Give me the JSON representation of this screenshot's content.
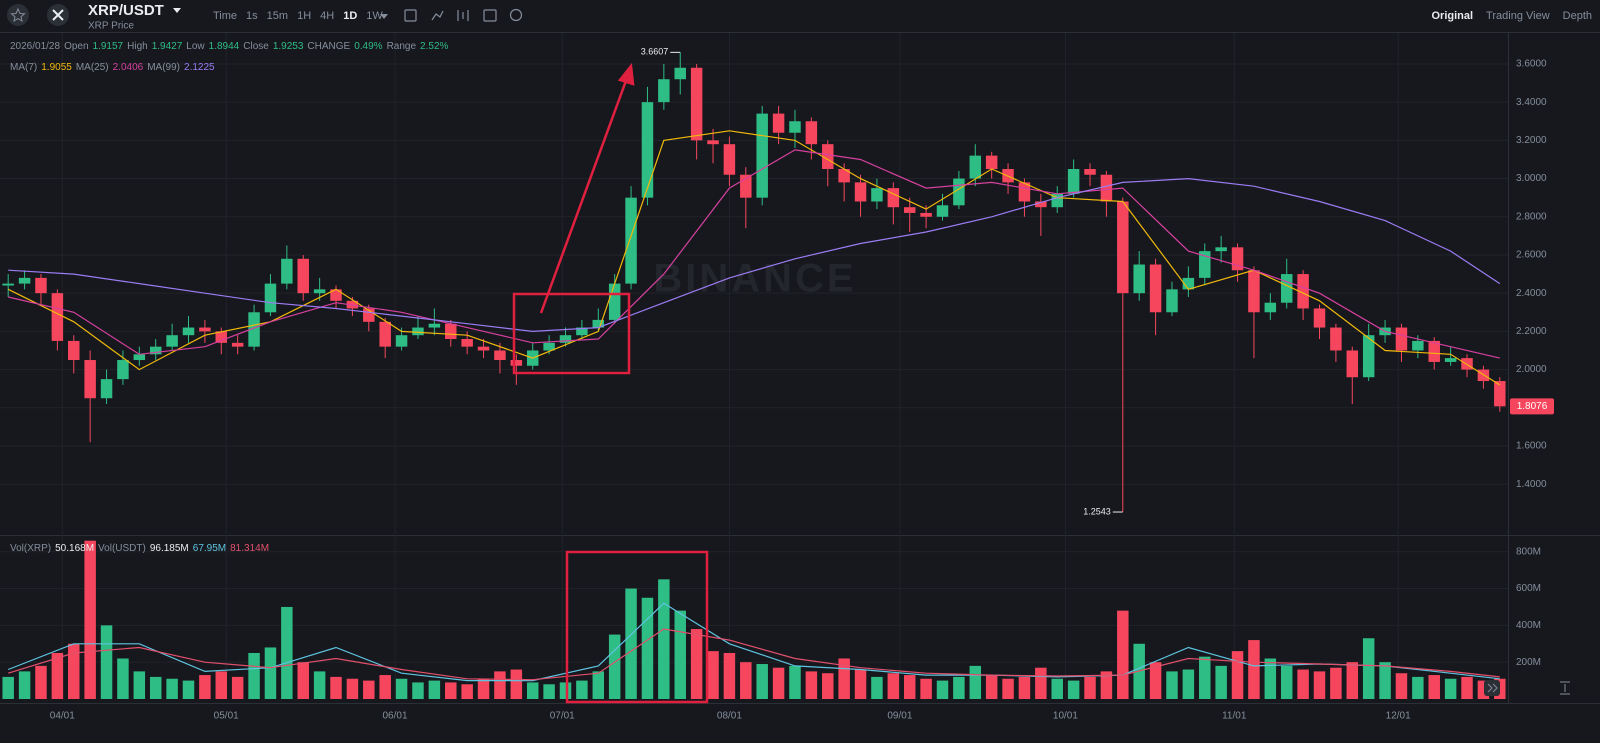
{
  "toolbar": {
    "symbol": "XRP/USDT",
    "subtitle": "XRP Price",
    "intervals": [
      "Time",
      "1s",
      "15m",
      "1H",
      "4H",
      "1D",
      "1W"
    ],
    "active_interval": 5,
    "views": [
      "Original",
      "Trading View",
      "Depth"
    ],
    "active_view": 0
  },
  "info": {
    "date": "2026/01/28",
    "items": [
      {
        "label": "Open",
        "value": 1.9157
      },
      {
        "label": "High",
        "value": 1.9427
      },
      {
        "label": "Low",
        "value": 1.8944
      },
      {
        "label": "Close",
        "value": 1.9253
      },
      {
        "label": "CHANGE",
        "value": "0.49%"
      },
      {
        "label": "Range",
        "value": "2.52%"
      }
    ]
  },
  "volume_info": [
    {
      "label": "Vol(XRP)",
      "value": "50.168M"
    },
    {
      "label": "Vol(USDT)",
      "value": "96.185M"
    }
  ],
  "chart_data": {
    "type": "candlestick",
    "watermark": "BINANCE",
    "up_color": "#2ebd85",
    "down_color": "#f6465d",
    "xlim": [
      -0.5,
      91.5
    ],
    "xticks": [
      {
        "value": 3.3,
        "label": "04/01"
      },
      {
        "value": 13.3,
        "label": "05/01"
      },
      {
        "value": 23.6,
        "label": "06/01"
      },
      {
        "value": 33.8,
        "label": "07/01"
      },
      {
        "value": 44.0,
        "label": "08/01"
      },
      {
        "value": 54.4,
        "label": "09/01"
      },
      {
        "value": 64.5,
        "label": "10/01"
      },
      {
        "value": 74.8,
        "label": "11/01"
      },
      {
        "value": 84.8,
        "label": "12/01"
      }
    ],
    "ylim": [
      1.134,
      3.762
    ],
    "yticks": [
      {
        "value": 1.4,
        "label": "1.4000"
      },
      {
        "value": 1.6,
        "label": "1.6000"
      },
      {
        "value": 1.8,
        "label": "1.8000"
      },
      {
        "value": 2.0,
        "label": "2.0000"
      },
      {
        "value": 2.2,
        "label": "2.2000"
      },
      {
        "value": 2.4,
        "label": "2.4000"
      },
      {
        "value": 2.6,
        "label": "2.6000"
      },
      {
        "value": 2.8,
        "label": "2.8000"
      },
      {
        "value": 3.0,
        "label": "3.0000"
      },
      {
        "value": 3.2,
        "label": "3.2000"
      },
      {
        "value": 3.4,
        "label": "3.4000"
      },
      {
        "value": 3.6,
        "label": "3.6000"
      }
    ],
    "candles": {
      "open": [
        2.44,
        2.45,
        2.48,
        2.4,
        2.15,
        2.05,
        1.85,
        1.95,
        2.05,
        2.08,
        2.12,
        2.18,
        2.22,
        2.2,
        2.14,
        2.12,
        2.3,
        2.45,
        2.58,
        2.4,
        2.42,
        2.36,
        2.32,
        2.25,
        2.12,
        2.18,
        2.22,
        2.24,
        2.16,
        2.12,
        2.1,
        2.05,
        2.02,
        2.1,
        2.14,
        2.18,
        2.22,
        2.26,
        2.45,
        2.9,
        3.4,
        3.52,
        3.58,
        3.2,
        3.18,
        3.02,
        2.9,
        3.34,
        3.24,
        3.3,
        3.18,
        3.05,
        2.98,
        2.88,
        2.95,
        2.85,
        2.82,
        2.8,
        2.86,
        3.0,
        3.12,
        3.05,
        2.98,
        2.88,
        2.85,
        2.92,
        3.05,
        3.02,
        2.88,
        2.4,
        2.55,
        2.3,
        2.42,
        2.48,
        2.62,
        2.64,
        2.52,
        2.3,
        2.35,
        2.5,
        2.32,
        2.22,
        2.1,
        1.96,
        2.18,
        2.22,
        2.1,
        2.15,
        2.04,
        2.06,
        2.0,
        1.94
      ],
      "high": [
        2.5,
        2.52,
        2.5,
        2.42,
        2.18,
        2.1,
        2.0,
        2.1,
        2.12,
        2.16,
        2.24,
        2.28,
        2.26,
        2.22,
        2.18,
        2.34,
        2.5,
        2.65,
        2.6,
        2.48,
        2.44,
        2.38,
        2.34,
        2.27,
        2.22,
        2.28,
        2.32,
        2.26,
        2.2,
        2.16,
        2.14,
        2.08,
        2.14,
        2.18,
        2.22,
        2.26,
        2.32,
        2.5,
        2.96,
        3.48,
        3.6,
        3.6607,
        3.6,
        3.26,
        3.22,
        3.06,
        3.38,
        3.38,
        3.36,
        3.32,
        3.2,
        3.08,
        3.02,
        3.0,
        2.98,
        2.9,
        2.86,
        2.92,
        3.04,
        3.18,
        3.14,
        3.08,
        3.0,
        2.92,
        2.96,
        3.1,
        3.08,
        3.04,
        2.9,
        2.62,
        2.58,
        2.46,
        2.54,
        2.66,
        2.7,
        2.66,
        2.54,
        2.4,
        2.58,
        2.52,
        2.34,
        2.24,
        2.12,
        2.24,
        2.26,
        2.24,
        2.18,
        2.17,
        2.12,
        2.08,
        2.02,
        1.96
      ],
      "low": [
        2.38,
        2.42,
        2.34,
        2.1,
        1.98,
        1.62,
        1.82,
        1.92,
        2.02,
        2.05,
        2.1,
        2.14,
        2.14,
        2.08,
        2.08,
        2.1,
        2.28,
        2.42,
        2.36,
        2.36,
        2.32,
        2.28,
        2.2,
        2.06,
        2.1,
        2.16,
        2.18,
        2.12,
        2.08,
        2.06,
        1.98,
        1.92,
        2.0,
        2.08,
        2.12,
        2.16,
        2.2,
        2.24,
        2.42,
        2.86,
        3.36,
        3.44,
        3.1,
        3.08,
        2.96,
        2.74,
        2.86,
        3.18,
        3.16,
        3.1,
        2.96,
        2.88,
        2.8,
        2.84,
        2.76,
        2.72,
        2.74,
        2.78,
        2.84,
        2.96,
        3.0,
        2.92,
        2.8,
        2.7,
        2.82,
        2.9,
        2.96,
        2.8,
        1.2543,
        2.36,
        2.18,
        2.28,
        2.38,
        2.44,
        2.56,
        2.46,
        2.06,
        2.26,
        2.32,
        2.26,
        2.16,
        2.04,
        1.82,
        1.94,
        2.14,
        2.04,
        2.06,
        2.0,
        2.02,
        1.96,
        1.9,
        1.78
      ],
      "close": [
        2.45,
        2.48,
        2.4,
        2.15,
        2.05,
        1.85,
        1.95,
        2.05,
        2.08,
        2.12,
        2.18,
        2.22,
        2.2,
        2.14,
        2.12,
        2.3,
        2.45,
        2.58,
        2.4,
        2.42,
        2.36,
        2.32,
        2.25,
        2.12,
        2.18,
        2.22,
        2.24,
        2.16,
        2.12,
        2.1,
        2.05,
        2.02,
        2.1,
        2.14,
        2.18,
        2.22,
        2.26,
        2.45,
        2.9,
        3.4,
        3.52,
        3.58,
        3.2,
        3.18,
        3.02,
        2.9,
        3.34,
        3.24,
        3.3,
        3.18,
        3.05,
        2.98,
        2.88,
        2.95,
        2.85,
        2.82,
        2.8,
        2.86,
        3.0,
        3.12,
        3.05,
        2.98,
        2.88,
        2.85,
        2.92,
        3.05,
        3.02,
        2.88,
        2.4,
        2.55,
        2.3,
        2.42,
        2.48,
        2.62,
        2.64,
        2.52,
        2.3,
        2.35,
        2.5,
        2.32,
        2.22,
        2.1,
        1.96,
        2.18,
        2.22,
        2.1,
        2.15,
        2.04,
        2.06,
        2.0,
        1.94,
        1.8076
      ]
    },
    "ma": [
      {
        "name": "MA(7)",
        "current": 1.9055,
        "color": "#f0b90b",
        "x": [
          0,
          4,
          8,
          12,
          16,
          20,
          24,
          28,
          32,
          36,
          40,
          44,
          48,
          52,
          56,
          60,
          64,
          68,
          72,
          76,
          80,
          84,
          88,
          91
        ],
        "values": [
          2.42,
          2.25,
          2.0,
          2.18,
          2.25,
          2.42,
          2.2,
          2.18,
          2.06,
          2.2,
          3.2,
          3.25,
          3.2,
          3.0,
          2.84,
          3.05,
          2.9,
          2.88,
          2.42,
          2.52,
          2.36,
          2.1,
          2.08,
          1.92
        ]
      },
      {
        "name": "MA(25)",
        "current": 2.0406,
        "color": "#d6409f",
        "x": [
          0,
          4,
          8,
          12,
          16,
          20,
          24,
          28,
          32,
          36,
          40,
          44,
          48,
          52,
          56,
          60,
          64,
          68,
          72,
          76,
          80,
          84,
          88,
          91
        ],
        "values": [
          2.38,
          2.3,
          2.08,
          2.12,
          2.25,
          2.35,
          2.3,
          2.22,
          2.14,
          2.16,
          2.5,
          2.95,
          3.15,
          3.1,
          2.95,
          2.98,
          2.92,
          2.95,
          2.62,
          2.52,
          2.4,
          2.2,
          2.12,
          2.06
        ]
      },
      {
        "name": "MA(99)",
        "current": 2.1225,
        "color": "#9c7cf4",
        "x": [
          0,
          4,
          8,
          12,
          16,
          20,
          24,
          28,
          32,
          36,
          40,
          44,
          48,
          52,
          56,
          60,
          64,
          68,
          72,
          76,
          80,
          84,
          88,
          91
        ],
        "values": [
          2.52,
          2.5,
          2.45,
          2.4,
          2.35,
          2.32,
          2.28,
          2.24,
          2.2,
          2.22,
          2.35,
          2.48,
          2.58,
          2.66,
          2.72,
          2.8,
          2.9,
          2.98,
          3.0,
          2.96,
          2.88,
          2.78,
          2.62,
          2.45
        ]
      }
    ],
    "volume": {
      "ylim": [
        0,
        880
      ],
      "yticks": [
        {
          "value": 200,
          "label": "200M"
        },
        {
          "value": 400,
          "label": "400M"
        },
        {
          "value": 600,
          "label": "600M"
        },
        {
          "value": 800,
          "label": "800M"
        }
      ],
      "values": [
        120,
        150,
        180,
        250,
        300,
        860,
        400,
        220,
        150,
        120,
        110,
        100,
        130,
        150,
        120,
        250,
        280,
        500,
        200,
        150,
        120,
        110,
        100,
        130,
        110,
        90,
        100,
        90,
        80,
        110,
        150,
        160,
        90,
        80,
        90,
        100,
        150,
        350,
        600,
        550,
        650,
        480,
        380,
        260,
        250,
        200,
        190,
        170,
        180,
        150,
        140,
        220,
        160,
        120,
        140,
        130,
        110,
        100,
        120,
        180,
        130,
        110,
        120,
        170,
        110,
        100,
        120,
        150,
        480,
        300,
        200,
        150,
        160,
        230,
        180,
        260,
        320,
        220,
        180,
        160,
        150,
        170,
        200,
        330,
        200,
        140,
        120,
        130,
        110,
        120,
        100,
        110
      ]
    },
    "volume_ma": [
      {
        "current": "67.95M",
        "color": "#5fc4e0",
        "x": [
          0,
          4,
          8,
          12,
          16,
          20,
          24,
          28,
          32,
          36,
          40,
          44,
          48,
          52,
          56,
          60,
          64,
          68,
          72,
          76,
          80,
          84,
          88,
          91
        ],
        "values": [
          160,
          300,
          300,
          150,
          170,
          280,
          140,
          100,
          100,
          180,
          520,
          300,
          180,
          160,
          130,
          130,
          120,
          130,
          280,
          180,
          190,
          180,
          140,
          110
        ]
      },
      {
        "current": "81.314M",
        "color": "#e2506c",
        "x": [
          0,
          4,
          8,
          12,
          16,
          20,
          24,
          28,
          32,
          36,
          40,
          44,
          48,
          52,
          56,
          60,
          64,
          68,
          72,
          76,
          80,
          84,
          88,
          91
        ],
        "values": [
          140,
          250,
          280,
          200,
          170,
          220,
          160,
          110,
          105,
          140,
          380,
          320,
          220,
          170,
          140,
          130,
          125,
          130,
          220,
          200,
          190,
          180,
          150,
          120
        ]
      }
    ]
  }
}
